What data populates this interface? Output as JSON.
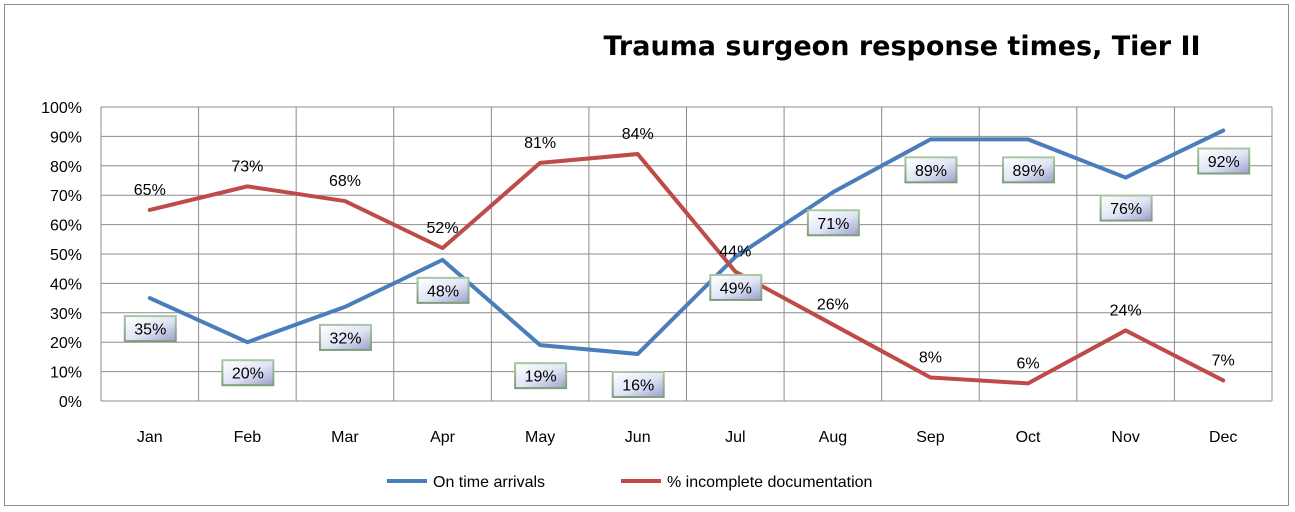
{
  "chart_data": {
    "type": "line",
    "title": "Trauma surgeon response times, Tier II",
    "categories": [
      "Jan",
      "Feb",
      "Mar",
      "Apr",
      "May",
      "Jun",
      "Jul",
      "Aug",
      "Sep",
      "Oct",
      "Nov",
      "Dec"
    ],
    "series": [
      {
        "name": "On time arrivals",
        "color": "#4a7ebb",
        "values": [
          35,
          20,
          32,
          48,
          19,
          16,
          49,
          71,
          89,
          89,
          76,
          92
        ],
        "labels": [
          "35%",
          "20%",
          "32%",
          "48%",
          "19%",
          "16%",
          "49%",
          "71%",
          "89%",
          "89%",
          "76%",
          "92%"
        ]
      },
      {
        "name": "% incomplete documentation",
        "color": "#be4b48",
        "values": [
          65,
          73,
          68,
          52,
          81,
          84,
          44,
          26,
          8,
          6,
          24,
          7
        ],
        "labels": [
          "65%",
          "73%",
          "68%",
          "52%",
          "81%",
          "84%",
          "44%",
          "26%",
          "8%",
          "6%",
          "24%",
          "7%"
        ]
      }
    ],
    "yticks": [
      "0%",
      "10%",
      "20%",
      "30%",
      "40%",
      "50%",
      "60%",
      "70%",
      "80%",
      "90%",
      "100%"
    ],
    "ylim": [
      0,
      100
    ],
    "grid": true,
    "legend": "bottom"
  }
}
